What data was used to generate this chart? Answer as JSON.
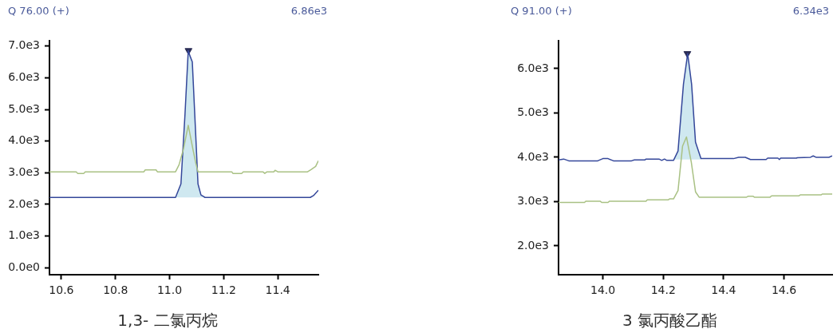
{
  "chart_data": [
    {
      "type": "line",
      "title": "Q 76.00 (+)",
      "annotations": [
        "6.86e3"
      ],
      "xlabel": "1,3- 二氯丙烷",
      "legend": false,
      "grid": false,
      "marker": "none",
      "line_style": "solid",
      "xlim": [
        10.556,
        11.55
      ],
      "ylim": [
        -220,
        7170
      ],
      "xticks": [
        10.6,
        10.8,
        {
          "value": 11,
          "label": "11.0"
        },
        11.2,
        11.4
      ],
      "yticks": [
        {
          "value": 0,
          "label": "0.0e0"
        },
        {
          "value": 1000,
          "label": "1.0e3"
        },
        {
          "value": 2000,
          "label": "2.0e3"
        },
        {
          "value": 3000,
          "label": "3.0e3"
        },
        {
          "value": 4000,
          "label": "4.0e3"
        },
        {
          "value": 5000,
          "label": "5.0e3"
        },
        {
          "value": 6000,
          "label": "6.0e3"
        },
        {
          "value": 7000,
          "label": "7.0e3"
        }
      ],
      "series": [
        {
          "color": "#a9c184",
          "x": [
            10.556,
            10.655,
            10.66,
            10.683,
            10.688,
            10.905,
            10.91,
            10.95,
            10.955,
            11.022,
            11.035,
            11.051,
            11.069,
            11.087,
            11.097,
            11.105,
            11.23,
            11.234,
            11.267,
            11.272,
            11.345,
            11.352,
            11.36,
            11.385,
            11.39,
            11.4,
            11.51,
            11.523,
            11.54,
            11.55
          ],
          "values": [
            3030,
            3030,
            2980,
            2980,
            3030,
            3030,
            3090,
            3090,
            3030,
            3030,
            3250,
            3740,
            4500,
            3710,
            3300,
            3030,
            3030,
            2980,
            2980,
            3030,
            3030,
            2980,
            3030,
            3030,
            3080,
            3030,
            3030,
            3100,
            3200,
            3380
          ]
        },
        {
          "color": "#34479a",
          "x": [
            10.556,
            11.022,
            11.042,
            11.057,
            11.069,
            11.075,
            11.084,
            11.095,
            11.105,
            11.116,
            11.131,
            11.52,
            11.532,
            11.55
          ],
          "values": [
            2220,
            2220,
            2650,
            4850,
            6860,
            6700,
            6500,
            4500,
            2650,
            2300,
            2220,
            2220,
            2280,
            2450
          ],
          "lower": [
            null,
            2220,
            2220,
            2220,
            2220,
            2220,
            2220,
            2220,
            2220,
            2220,
            2220,
            null,
            null,
            null
          ],
          "upper": [
            null,
            2220,
            2650,
            4850,
            6860,
            6700,
            6500,
            4500,
            2650,
            2300,
            2220,
            null,
            null,
            null
          ]
        },
        {
          "type": "scatter",
          "marker": "triangle",
          "color": "#2b2d55",
          "x": [
            11.07
          ],
          "values": [
            6860
          ]
        }
      ]
    },
    {
      "type": "line",
      "title": "Q 91.00 (+)",
      "annotations": [
        "6.34e3"
      ],
      "xlabel": "3  氯丙酸乙酯",
      "legend": false,
      "grid": false,
      "marker": "none",
      "line_style": "solid",
      "xlim": [
        13.853,
        14.76
      ],
      "ylim": [
        1350,
        6630
      ],
      "xticks": [
        {
          "value": 14,
          "label": "14.0"
        },
        14.2,
        14.4,
        14.6
      ],
      "yticks": [
        {
          "value": 2000,
          "label": "2.0e3"
        },
        {
          "value": 3000,
          "label": "3.0e3"
        },
        {
          "value": 4000,
          "label": "4.0e3"
        },
        {
          "value": 5000,
          "label": "5.0e3"
        },
        {
          "value": 6000,
          "label": "6.0e3"
        }
      ],
      "series": [
        {
          "color": "#a9c184",
          "x": [
            13.853,
            13.939,
            13.944,
            13.991,
            13.996,
            14.017,
            14.022,
            14.143,
            14.147,
            14.217,
            14.221,
            14.234,
            14.249,
            14.264,
            14.277,
            14.293,
            14.307,
            14.319,
            14.476,
            14.481,
            14.498,
            14.502,
            14.554,
            14.559,
            14.65,
            14.654,
            14.723,
            14.727,
            14.76
          ],
          "values": [
            2980,
            2980,
            3010,
            3010,
            2980,
            2980,
            3010,
            3010,
            3040,
            3040,
            3060,
            3060,
            3250,
            4250,
            4460,
            3890,
            3220,
            3100,
            3100,
            3120,
            3120,
            3100,
            3100,
            3130,
            3130,
            3150,
            3150,
            3170,
            3170
          ]
        },
        {
          "color": "#34479a",
          "x": [
            13.853,
            13.87,
            13.887,
            13.931,
            13.983,
            14.0,
            14.017,
            14.035,
            14.095,
            14.104,
            14.139,
            14.143,
            14.186,
            14.195,
            14.204,
            14.212,
            14.234,
            14.249,
            14.267,
            14.281,
            14.294,
            14.307,
            14.325,
            14.433,
            14.45,
            14.472,
            14.489,
            14.541,
            14.546,
            14.58,
            14.585,
            14.589,
            14.641,
            14.645,
            14.688,
            14.697,
            14.706,
            14.749,
            14.76
          ],
          "values": [
            3940,
            3960,
            3920,
            3920,
            3920,
            3970,
            3970,
            3920,
            3920,
            3940,
            3940,
            3960,
            3960,
            3930,
            3960,
            3930,
            3930,
            4140,
            5650,
            6340,
            5650,
            4340,
            3970,
            3970,
            4000,
            4000,
            3950,
            3950,
            3980,
            3980,
            3950,
            3980,
            3980,
            3990,
            4000,
            4030,
            4000,
            4000,
            4030
          ],
          "lower": [
            null,
            null,
            null,
            null,
            null,
            null,
            null,
            null,
            null,
            null,
            null,
            null,
            null,
            null,
            null,
            null,
            3950,
            3950,
            3950,
            3950,
            3950,
            3950,
            3950,
            null,
            null,
            null,
            null,
            null,
            null,
            null,
            null,
            null,
            null,
            null,
            null,
            null,
            null,
            null,
            null
          ],
          "upper": [
            null,
            null,
            null,
            null,
            null,
            null,
            null,
            null,
            null,
            null,
            null,
            null,
            null,
            null,
            null,
            null,
            3930,
            4140,
            5650,
            6340,
            5650,
            4340,
            3970,
            null,
            null,
            null,
            null,
            null,
            null,
            null,
            null,
            null,
            null,
            null,
            null,
            null,
            null,
            null,
            null
          ]
        },
        {
          "type": "scatter",
          "marker": "triangle",
          "color": "#2b2d55",
          "x": [
            14.28
          ],
          "values": [
            6340
          ]
        }
      ]
    }
  ]
}
